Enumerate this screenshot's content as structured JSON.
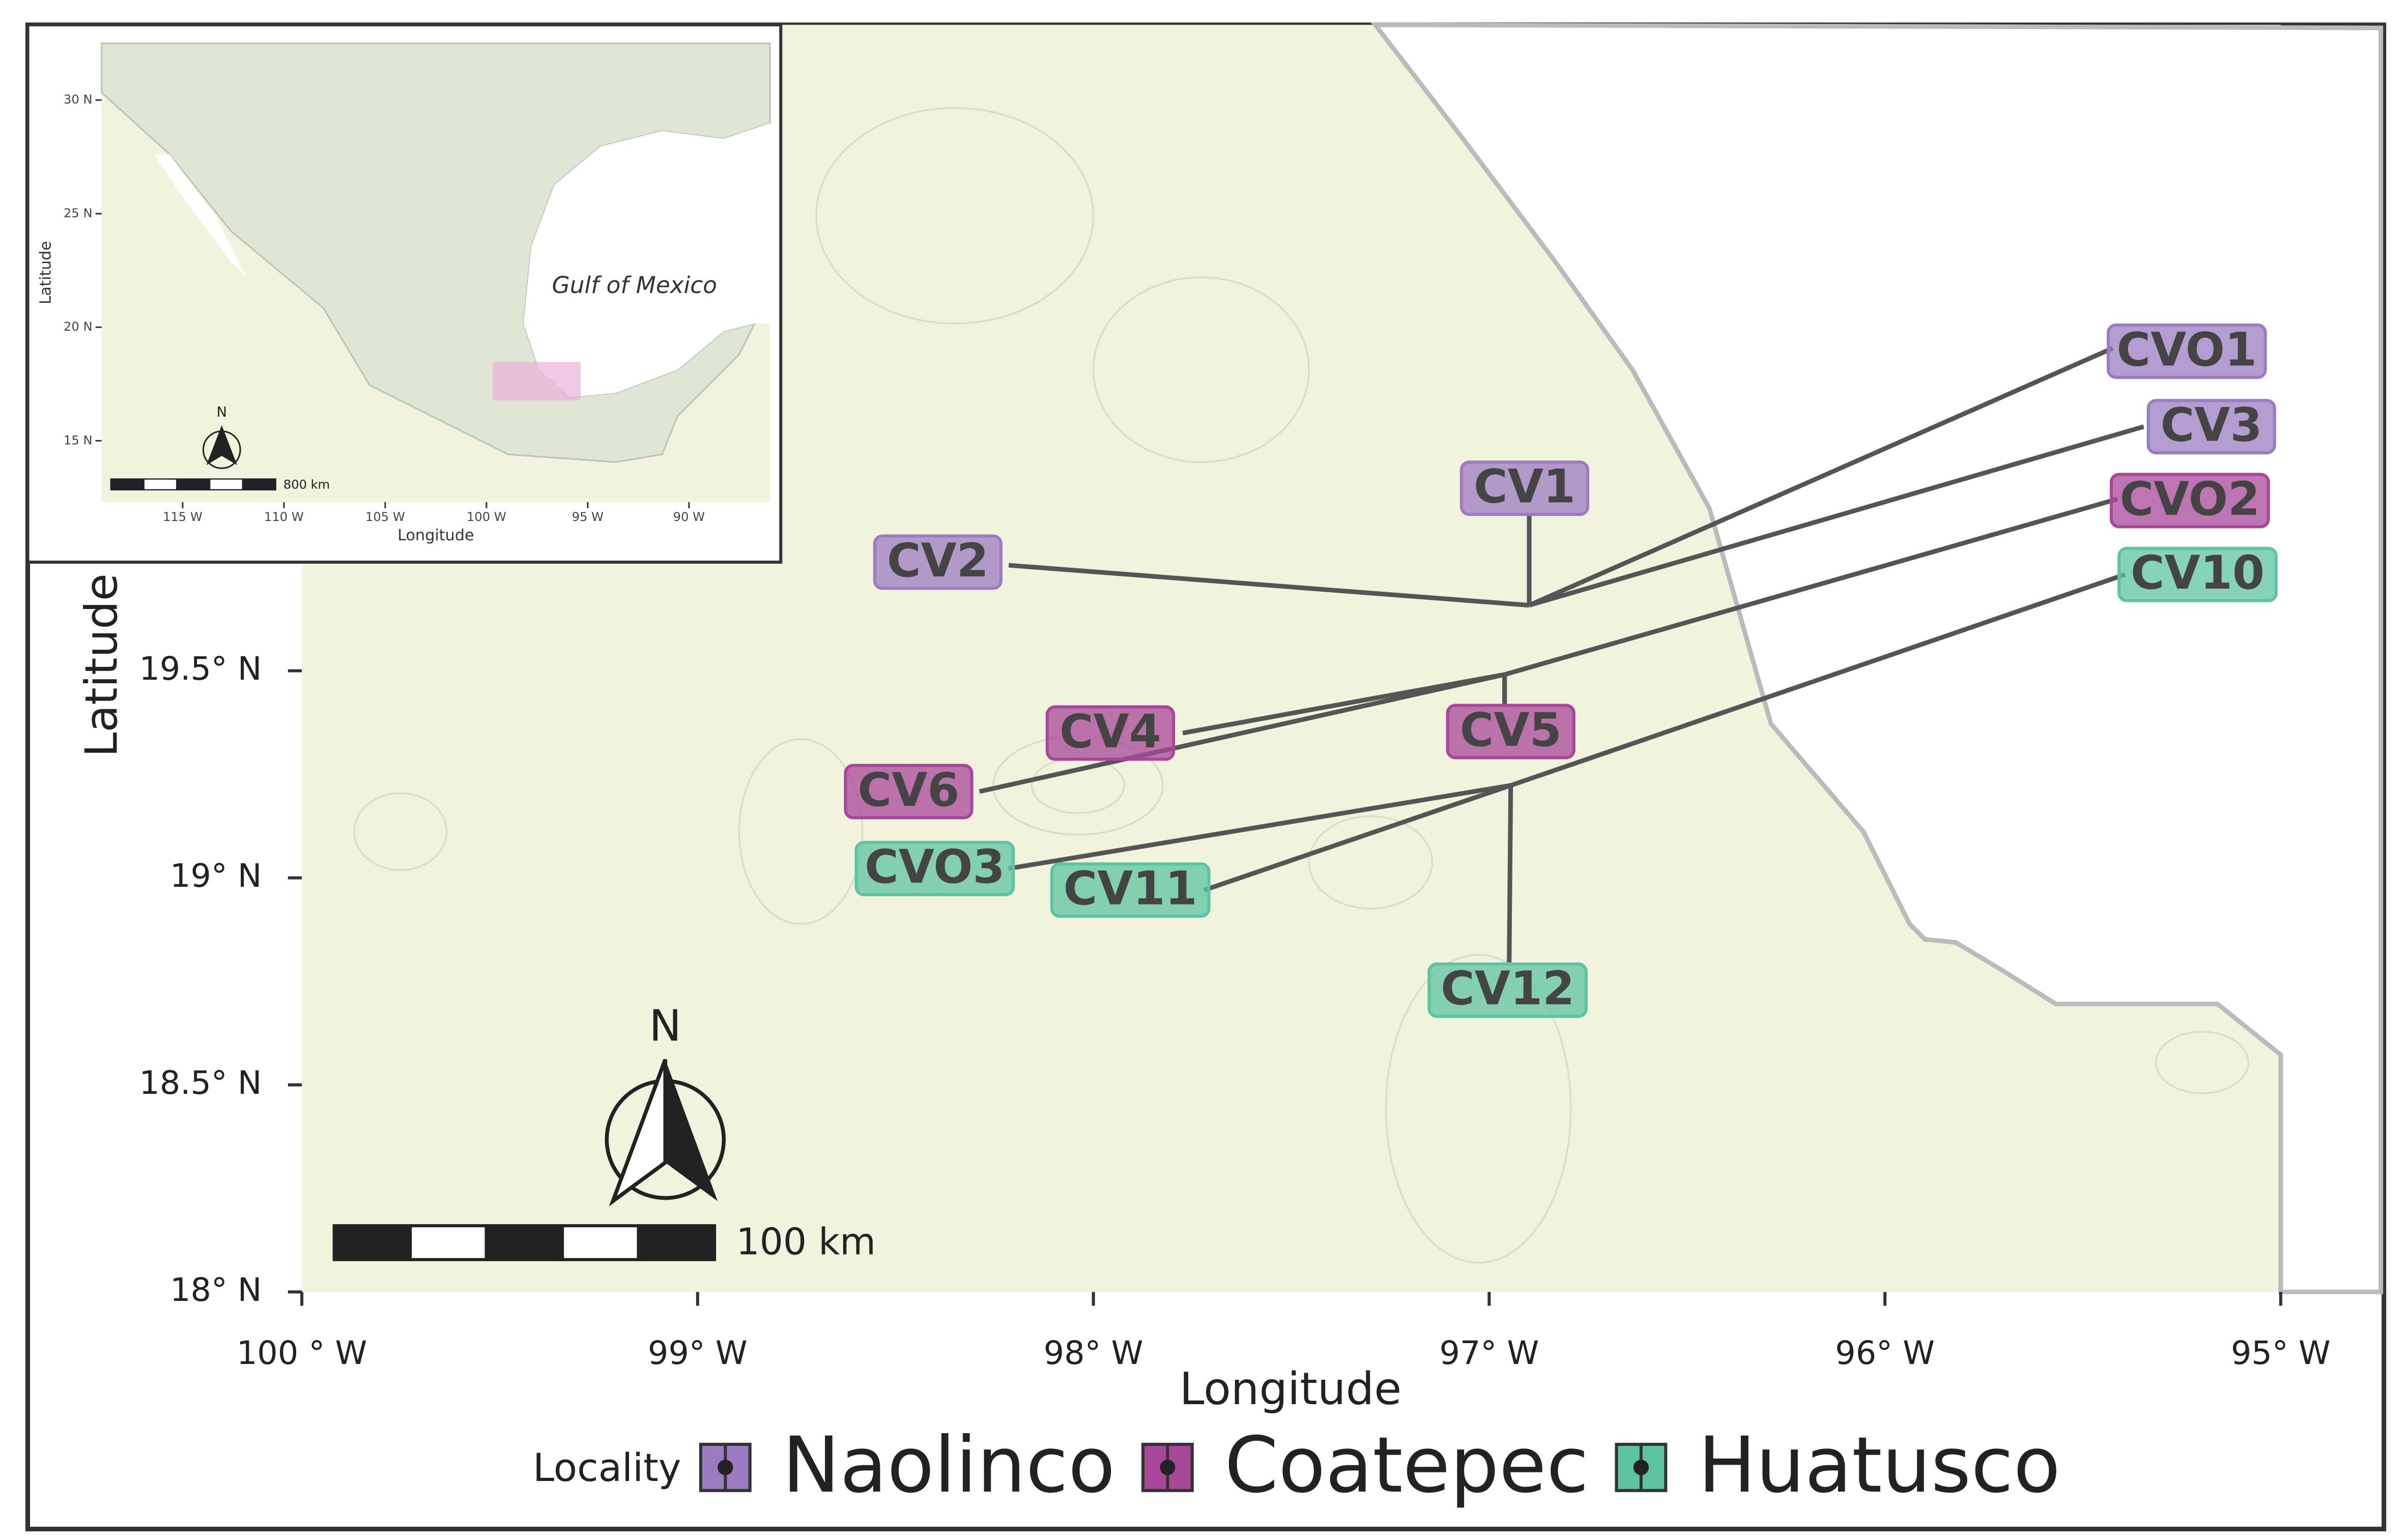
{
  "main_map": {
    "xlabel": "Longitude",
    "ylabel": "Latitude",
    "xlim": [
      -100,
      -95
    ],
    "ylim": [
      18,
      21.06
    ],
    "xticks": [
      {
        "value": -100,
        "label": "100 ° W"
      },
      {
        "value": -99,
        "label": "99° W"
      },
      {
        "value": -98,
        "label": "98° W"
      },
      {
        "value": -97,
        "label": "97° W"
      },
      {
        "value": -96,
        "label": "96° W"
      },
      {
        "value": -95,
        "label": "95° W"
      }
    ],
    "yticks": [
      {
        "value": 18,
        "label": "18° N"
      },
      {
        "value": 18.5,
        "label": "18.5° N"
      },
      {
        "value": 19,
        "label": "19° N"
      },
      {
        "value": 19.5,
        "label": "19.5° N"
      }
    ],
    "north_label": "N",
    "scale_label": "100 km"
  },
  "inset": {
    "xlabel": "Longitude",
    "ylabel": "Latitude",
    "sea_label": "Gulf of Mexico",
    "north_label": "N",
    "scale_label": "800 km",
    "xlim": [
      -119,
      -86
    ],
    "ylim": [
      12.3,
      32.5
    ],
    "xticks": [
      {
        "value": -115,
        "label": "115 W"
      },
      {
        "value": -110,
        "label": "110 W"
      },
      {
        "value": -105,
        "label": "105 W"
      },
      {
        "value": -100,
        "label": "100 W"
      },
      {
        "value": -95,
        "label": "95 W"
      },
      {
        "value": -90,
        "label": "90 W"
      }
    ],
    "yticks": [
      {
        "value": 15,
        "label": "15 N"
      },
      {
        "value": 20,
        "label": "20 N"
      },
      {
        "value": 25,
        "label": "25 N"
      },
      {
        "value": 30,
        "label": "30 N"
      }
    ]
  },
  "legend": {
    "title": "Locality",
    "items": [
      {
        "name": "Naolinco",
        "color": "#9b7cc0",
        "sites": [
          "CVO1",
          "CV3",
          "CV1",
          "CV2"
        ]
      },
      {
        "name": "Coatepec",
        "color": "#a8479a",
        "sites": [
          "CVO2",
          "CV4",
          "CV5",
          "CV6"
        ]
      },
      {
        "name": "Huatusco",
        "color": "#5cc4a2",
        "sites": [
          "CV10",
          "CVO3",
          "CV11",
          "CV12"
        ]
      }
    ]
  }
}
